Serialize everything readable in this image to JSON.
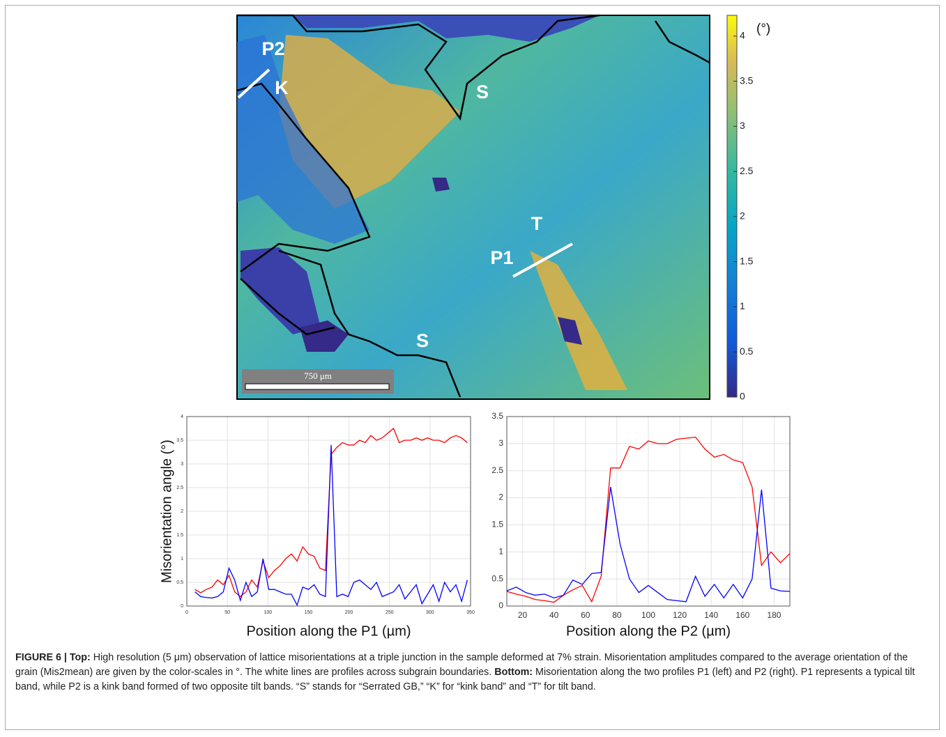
{
  "chart_data": [
    {
      "type": "line",
      "x_label": "Position along the P1 (µm)",
      "y_label": "Misorientation angle (°)",
      "x": [
        10,
        17,
        24,
        31,
        38,
        45,
        52,
        59,
        66,
        73,
        80,
        87,
        94,
        101,
        108,
        115,
        122,
        129,
        136,
        143,
        150,
        157,
        164,
        171,
        178,
        185,
        192,
        199,
        206,
        213,
        220,
        227,
        234,
        241,
        248,
        255,
        262,
        269,
        276,
        283,
        290,
        297,
        304,
        311,
        318,
        325,
        332,
        339,
        346
      ],
      "series": [
        {
          "color": "#ff0000",
          "values": [
            0.35,
            0.28,
            0.35,
            0.4,
            0.55,
            0.45,
            0.65,
            0.3,
            0.2,
            0.3,
            0.55,
            0.4,
            0.95,
            0.6,
            0.75,
            0.85,
            1.0,
            1.1,
            0.95,
            1.25,
            1.1,
            1.05,
            0.8,
            0.75,
            3.2,
            3.35,
            3.45,
            3.4,
            3.4,
            3.5,
            3.45,
            3.6,
            3.5,
            3.55,
            3.65,
            3.75,
            3.45,
            3.5,
            3.5,
            3.55,
            3.5,
            3.55,
            3.5,
            3.5,
            3.45,
            3.55,
            3.6,
            3.55,
            3.45
          ]
        },
        {
          "color": "#0000ff",
          "values": [
            0.3,
            0.2,
            0.18,
            0.17,
            0.2,
            0.3,
            0.8,
            0.55,
            0.12,
            0.5,
            0.2,
            0.3,
            1.0,
            0.35,
            0.35,
            0.3,
            0.25,
            0.25,
            0.02,
            0.4,
            0.35,
            0.45,
            0.25,
            0.2,
            3.4,
            0.2,
            0.25,
            0.2,
            0.5,
            0.55,
            0.45,
            0.35,
            0.5,
            0.2,
            0.25,
            0.3,
            0.45,
            0.15,
            0.3,
            0.45,
            0.05,
            0.25,
            0.45,
            0.1,
            0.5,
            0.3,
            0.45,
            0.1,
            0.55
          ]
        }
      ],
      "xlim": [
        0,
        350
      ],
      "xticks": [
        0,
        50,
        100,
        150,
        200,
        250,
        300,
        350
      ],
      "ylim": [
        0,
        4
      ],
      "yticks": [
        0,
        0.5,
        1,
        1.5,
        2,
        2.5,
        3,
        3.5,
        4
      ],
      "grid": true
    },
    {
      "type": "line",
      "x_label": "Position along the P2 (µm)",
      "x": [
        10,
        16,
        22,
        28,
        34,
        40,
        46,
        52,
        58,
        64,
        70,
        76,
        82,
        88,
        94,
        100,
        106,
        112,
        118,
        124,
        130,
        136,
        142,
        148,
        154,
        160,
        166,
        172,
        178,
        184,
        190
      ],
      "series": [
        {
          "color": "#ff0000",
          "values": [
            0.27,
            0.22,
            0.18,
            0.12,
            0.1,
            0.07,
            0.2,
            0.3,
            0.38,
            0.08,
            0.55,
            2.55,
            2.55,
            2.95,
            2.9,
            3.05,
            3.0,
            3.0,
            3.08,
            3.1,
            3.12,
            2.9,
            2.75,
            2.8,
            2.7,
            2.65,
            2.2,
            0.75,
            1.0,
            0.8,
            0.97
          ]
        },
        {
          "color": "#0000ff",
          "values": [
            0.28,
            0.35,
            0.25,
            0.2,
            0.22,
            0.15,
            0.2,
            0.48,
            0.4,
            0.6,
            0.62,
            2.2,
            1.15,
            0.5,
            0.25,
            0.38,
            0.25,
            0.12,
            0.1,
            0.08,
            0.55,
            0.18,
            0.4,
            0.15,
            0.4,
            0.15,
            0.5,
            2.15,
            0.33,
            0.28,
            0.27
          ]
        }
      ],
      "xlim": [
        10,
        190
      ],
      "xticks": [
        20,
        40,
        60,
        80,
        100,
        120,
        140,
        160,
        180
      ],
      "ylim": [
        0,
        3.5
      ],
      "yticks": [
        0,
        0.5,
        1,
        1.5,
        2,
        2.5,
        3,
        3.5
      ],
      "grid": true
    }
  ],
  "map": {
    "labels": [
      "P2",
      "K",
      "S",
      "T",
      "P1",
      "S"
    ],
    "scale_bar": "750 μm"
  },
  "colorbar": {
    "unit": "(°)",
    "lim": [
      0,
      4.23
    ],
    "ticks": [
      0,
      0.5,
      1,
      1.5,
      2,
      2.5,
      3,
      3.5,
      4
    ]
  },
  "caption": [
    {
      "text": "FIGURE 6 | Top:",
      "bold": true
    },
    {
      "text": " High resolution (5 μm) observation of lattice misorientations at a triple junction in the sample deformed at 7% strain. Misorientation amplitudes compared to the average orientation of the grain (Mis2mean) are given by the color-scales in °. The white lines are profiles across subgrain boundaries. ",
      "bold": false
    },
    {
      "text": "Bottom:",
      "bold": true
    },
    {
      "text": " Misorientation along the two profiles P1 (left) and P2 (right). P1 represents a typical tilt band, while P2 is a kink band formed of two opposite tilt bands. “S” stands for “Serrated GB,” “K” for “kink band” and “T” for tilt band.",
      "bold": false
    }
  ]
}
